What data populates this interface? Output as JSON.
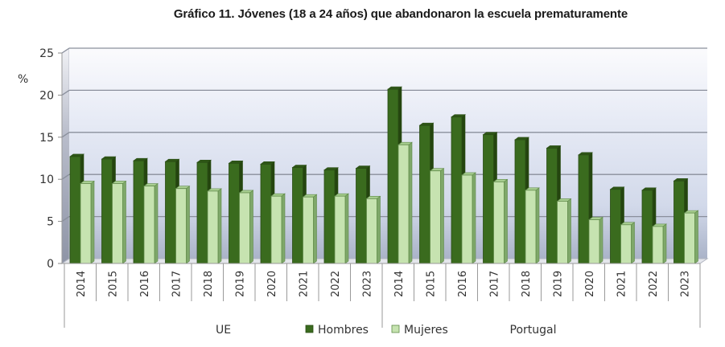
{
  "chart_data": {
    "type": "bar",
    "title": "Gráfico 11. Jóvenes (18 a 24 años) que abandonaron la escuela prematuramente",
    "xlabel": "",
    "ylabel": "%",
    "ylim": [
      0,
      25
    ],
    "yticks": [
      "0",
      "5",
      "10",
      "15",
      "20",
      "25"
    ],
    "grid": true,
    "legend_position": "bottom",
    "groups": [
      {
        "name": "UE",
        "categories": [
          "2014",
          "2015",
          "2016",
          "2017",
          "2018",
          "2019",
          "2020",
          "2021",
          "2022",
          "2023"
        ],
        "series": [
          {
            "name": "Hombres",
            "values": [
              12.7,
              12.4,
              12.2,
              12.1,
              12.0,
              11.9,
              11.8,
              11.4,
              11.1,
              11.3
            ]
          },
          {
            "name": "Mujeres",
            "values": [
              9.5,
              9.5,
              9.2,
              8.9,
              8.6,
              8.4,
              8.0,
              7.9,
              8.0,
              7.7
            ]
          }
        ]
      },
      {
        "name": "Portugal",
        "categories": [
          "2014",
          "2015",
          "2016",
          "2017",
          "2018",
          "2019",
          "2020",
          "2021",
          "2022",
          "2023"
        ],
        "series": [
          {
            "name": "Hombres",
            "values": [
              20.7,
              16.4,
              17.4,
              15.3,
              14.7,
              13.7,
              12.9,
              8.8,
              8.7,
              9.8
            ]
          },
          {
            "name": "Mujeres",
            "values": [
              14.1,
              11.0,
              10.5,
              9.7,
              8.7,
              7.4,
              5.2,
              4.6,
              4.4,
              6.0
            ]
          }
        ]
      }
    ],
    "legend": [
      {
        "name": "Hombres",
        "color": "#3a6b1e"
      },
      {
        "name": "Mujeres",
        "color": "#c6e3b0"
      }
    ]
  },
  "colors": {
    "hombres": "#3a6b1e",
    "hombres_dark": "#24450f",
    "mujeres": "#c6e3b0",
    "mujeres_edge": "#5f8a48",
    "gridline": "#8a8f9c"
  }
}
